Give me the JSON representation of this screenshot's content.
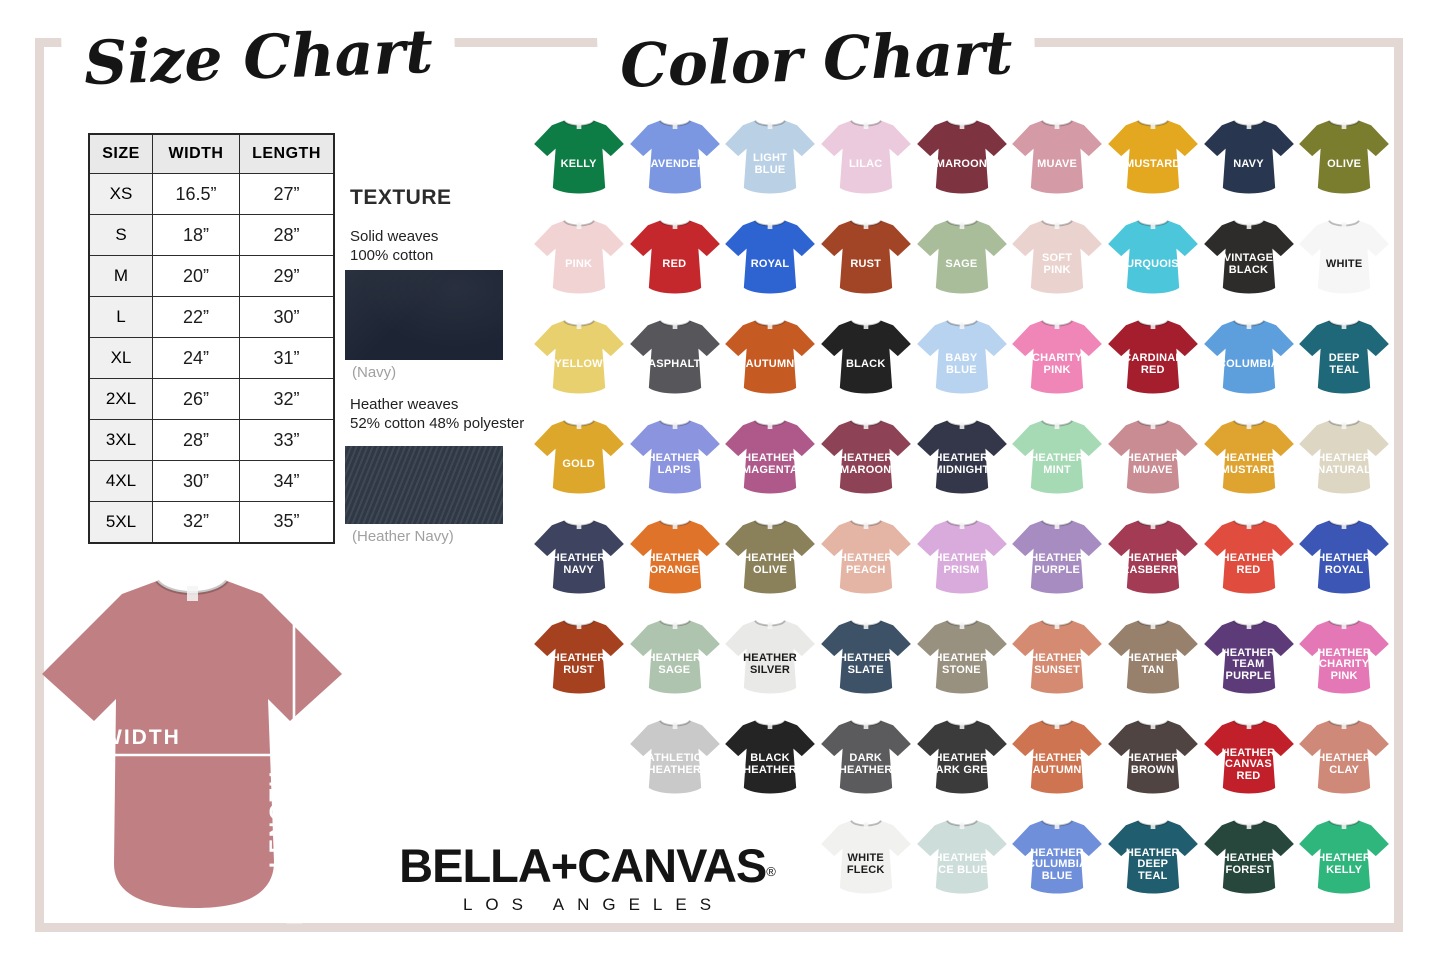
{
  "frame_color": "#e4d8d4",
  "size_chart": {
    "title": "Size Chart",
    "table": {
      "headers": [
        "SIZE",
        "WIDTH",
        "LENGTH"
      ],
      "rows": [
        [
          "XS",
          "16.5”",
          "27”"
        ],
        [
          "S",
          "18”",
          "28”"
        ],
        [
          "M",
          "20”",
          "29”"
        ],
        [
          "L",
          "22”",
          "30”"
        ],
        [
          "XL",
          "24”",
          "31”"
        ],
        [
          "2XL",
          "26”",
          "32”"
        ],
        [
          "3XL",
          "28”",
          "33”"
        ],
        [
          "4XL",
          "30”",
          "34”"
        ],
        [
          "5XL",
          "32”",
          "35”"
        ]
      ]
    }
  },
  "texture": {
    "title": "TEXTURE",
    "solid_label": "Solid weaves\n100% cotton",
    "solid_caption": "(Navy)",
    "solid_swatch_color": "#1d2433",
    "heather_label": "Heather weaves\n52% cotton 48% polyester",
    "heather_caption": "(Heather Navy)",
    "heather_swatch_color": "#2f3845"
  },
  "shirt_diagram": {
    "width_label": "WIDTH",
    "length_label": "LENGTH",
    "shirt_color": "#c07f82"
  },
  "brand": {
    "name": "BELLA+CANVAS",
    "registered": "®",
    "subtitle": "LOS ANGELES"
  },
  "color_chart": {
    "title": "Color Chart",
    "columns": 9,
    "rows": [
      [
        {
          "name": "KELLY",
          "color": "#0e7c45"
        },
        {
          "name": "LAVENDER",
          "color": "#7b97e2"
        },
        {
          "name": "LIGHT\nBLUE",
          "color": "#b9d0e5"
        },
        {
          "name": "LILAC",
          "color": "#eccade"
        },
        {
          "name": "MAROON",
          "color": "#7e3340"
        },
        {
          "name": "MUAVE",
          "color": "#d49aa6"
        },
        {
          "name": "MUSTARD",
          "color": "#e3a81f"
        },
        {
          "name": "NAVY",
          "color": "#28374f"
        },
        {
          "name": "OLIVE",
          "color": "#7a7c2e"
        }
      ],
      [
        {
          "name": "PINK",
          "color": "#f2d3d4"
        },
        {
          "name": "RED",
          "color": "#c5282c"
        },
        {
          "name": "ROYAL",
          "color": "#2e64d1"
        },
        {
          "name": "RUST",
          "color": "#a14526"
        },
        {
          "name": "SAGE",
          "color": "#a9bd9b"
        },
        {
          "name": "SOFT\nPINK",
          "color": "#ead3ce"
        },
        {
          "name": "TURQUOISE",
          "color": "#4bc6db"
        },
        {
          "name": "VINTAGE\nBLACK",
          "color": "#2d2c2a"
        },
        {
          "name": "WHITE",
          "color": "#f6f6f6",
          "dark": true
        }
      ],
      [
        {
          "name": "YELLOW",
          "color": "#e9d06e"
        },
        {
          "name": "ASPHALT",
          "color": "#56565b"
        },
        {
          "name": "AUTUMN",
          "color": "#c65a23"
        },
        {
          "name": "BLACK",
          "color": "#232323"
        },
        {
          "name": "BABY\nBLUE",
          "color": "#b8d3ef"
        },
        {
          "name": "CHARITY\nPINK",
          "color": "#ef86b7"
        },
        {
          "name": "CARDINAL\nRED",
          "color": "#a41e2d"
        },
        {
          "name": "COLUMBIA",
          "color": "#5d9edc"
        },
        {
          "name": "DEEP\nTEAL",
          "color": "#1f6879"
        }
      ],
      [
        {
          "name": "GOLD",
          "color": "#dca72b"
        },
        {
          "name": "HEATHER\nLAPIS",
          "color": "#8b94de"
        },
        {
          "name": "HEATHER\nMAGENTA",
          "color": "#ae598a"
        },
        {
          "name": "HEATHER\nMAROON",
          "color": "#8d4355"
        },
        {
          "name": "HEATHER\nMIDNIGHT",
          "color": "#343749"
        },
        {
          "name": "HEATHER\nMINT",
          "color": "#a6dab5"
        },
        {
          "name": "HEATHER\nMUAVE",
          "color": "#c98c93"
        },
        {
          "name": "HEATHER\nMUSTARD",
          "color": "#dfa430"
        },
        {
          "name": "HEATHER\nNATURAL",
          "color": "#dcd6c3"
        }
      ],
      [
        {
          "name": "HEATHER\nNAVY",
          "color": "#3e4360"
        },
        {
          "name": "HEATHER\nORANGE",
          "color": "#df7329"
        },
        {
          "name": "HEATHER\nOLIVE",
          "color": "#8a8059"
        },
        {
          "name": "HEATHER\nPEACH",
          "color": "#e4b4a5"
        },
        {
          "name": "HEATHER\nPRISM",
          "color": "#d9abdd"
        },
        {
          "name": "HEATHER\nPURPLE",
          "color": "#a68cc1"
        },
        {
          "name": "HEATHER\nRASBERRY",
          "color": "#a23b53"
        },
        {
          "name": "HEATHER\nRED",
          "color": "#e04d3f"
        },
        {
          "name": "HEATHER\nROYAL",
          "color": "#3c56b6"
        }
      ],
      [
        {
          "name": "HEATHER\nRUST",
          "color": "#a64120"
        },
        {
          "name": "HEATHER\nSAGE",
          "color": "#afc4af"
        },
        {
          "name": "HEATHER\nSILVER",
          "color": "#e9e9e7",
          "dark": true
        },
        {
          "name": "HEATHER\nSLATE",
          "color": "#3d5266"
        },
        {
          "name": "HEATHER\nSTONE",
          "color": "#98917f"
        },
        {
          "name": "HEATHER\nSUNSET",
          "color": "#d48b71"
        },
        {
          "name": "HEATHER\nTAN",
          "color": "#97816d"
        },
        {
          "name": "HEATHER\nTEAM\nPURPLE",
          "color": "#5d3b79"
        },
        {
          "name": "HEATHER\nCHARITY\nPINK",
          "color": "#e478b6"
        }
      ],
      [
        {
          "name": "ATHLETIC\nHEATHER",
          "color": "#c9c9c9"
        },
        {
          "name": "BLACK\nHEATHER",
          "color": "#242424"
        },
        {
          "name": "DARK\nHEATHER",
          "color": "#5b5b5d"
        },
        {
          "name": "HEATHER\nDARK GREY",
          "color": "#3b3b3b"
        },
        {
          "name": "HEATHER\nAUTUMN",
          "color": "#cf7450"
        },
        {
          "name": "HEATHER\nBROWN",
          "color": "#4f4441"
        },
        {
          "name": "HEATHER\nCANVAS\nRED",
          "color": "#c1202a"
        },
        {
          "name": "HEATHER\nCLAY",
          "color": "#ce8978"
        }
      ],
      [
        {
          "name": "WHITE\nFLECK",
          "color": "#f1f1ef",
          "dark": true
        },
        {
          "name": "HEATHER\nICE BLUE",
          "color": "#cdddd9"
        },
        {
          "name": "HEATHER\nCULUMBIA\nBLUE",
          "color": "#6f8fda"
        },
        {
          "name": "HEATHER\nDEEP\nTEAL",
          "color": "#205d6e"
        },
        {
          "name": "HEATHER\nFOREST",
          "color": "#27473d"
        },
        {
          "name": "HEATHER\nKELLY",
          "color": "#2fb67d"
        }
      ]
    ]
  }
}
